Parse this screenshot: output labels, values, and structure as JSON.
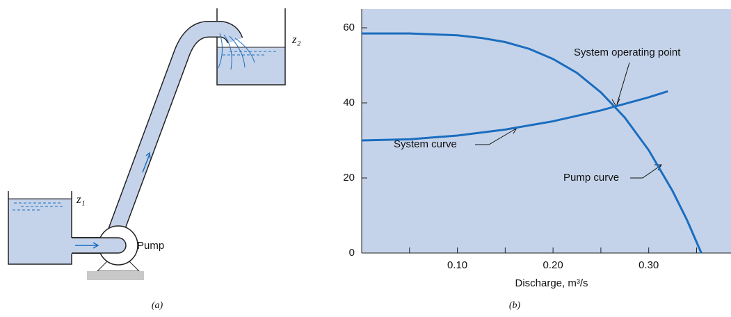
{
  "diagram": {
    "labels": {
      "upper_level": "z₂",
      "lower_level": "z₁",
      "pump": "Pump"
    },
    "caption": "(a)"
  },
  "chart_data": {
    "type": "line",
    "caption": "(b)",
    "xlabel": "Discharge, m³/s",
    "xlim": [
      0,
      0.386
    ],
    "ylim": [
      0,
      65
    ],
    "xticks": [
      {
        "value": 0.1,
        "label": "0.10"
      },
      {
        "value": 0.2,
        "label": "0.20"
      },
      {
        "value": 0.3,
        "label": "0.30"
      }
    ],
    "xminor_ticks": [
      0.05,
      0.15,
      0.25,
      0.35
    ],
    "yticks": [
      0,
      20,
      40,
      60
    ],
    "series": [
      {
        "name": "Pump curve",
        "color": "#1a6dbf",
        "x": [
          0,
          0.05,
          0.1,
          0.125,
          0.15,
          0.175,
          0.2,
          0.225,
          0.25,
          0.275,
          0.3,
          0.325,
          0.34,
          0.355
        ],
        "values": [
          58.5,
          58.5,
          58.0,
          57.3,
          56.2,
          54.4,
          51.7,
          48.0,
          42.8,
          36.1,
          27.4,
          16.5,
          8.8,
          0
        ]
      },
      {
        "name": "System curve",
        "color": "#1a6dbf",
        "x": [
          0,
          0.05,
          0.1,
          0.15,
          0.2,
          0.25,
          0.3,
          0.32
        ],
        "values": [
          30,
          30.3,
          31.3,
          32.9,
          35.1,
          38.0,
          41.5,
          43.1
        ]
      }
    ],
    "annotations": [
      "System operating point"
    ]
  }
}
